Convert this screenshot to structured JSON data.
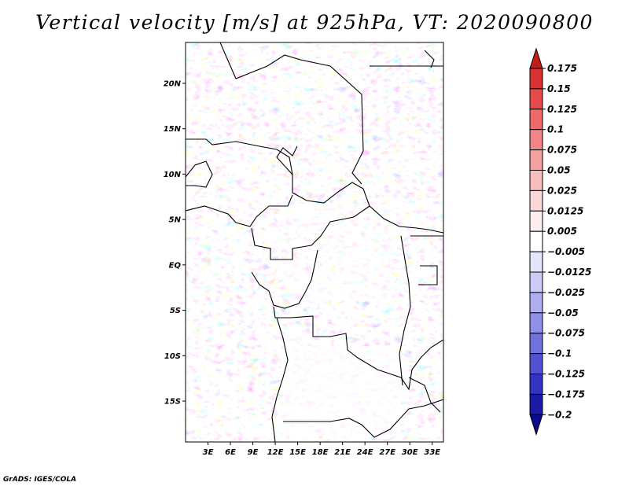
{
  "title": "Vertical velocity [m/s] at 925hPa, VT: 2020090800",
  "footer": "GrADS: IGES/COLA",
  "map": {
    "lon_range": [
      0,
      34.5
    ],
    "lat_range": [
      -19.5,
      24.5
    ],
    "lat_ticks": [
      {
        "value": 20,
        "label": "20N"
      },
      {
        "value": 15,
        "label": "15N"
      },
      {
        "value": 10,
        "label": "10N"
      },
      {
        "value": 5,
        "label": "5N"
      },
      {
        "value": 0,
        "label": "EQ"
      },
      {
        "value": -5,
        "label": "5S"
      },
      {
        "value": -10,
        "label": "10S"
      },
      {
        "value": -15,
        "label": "15S"
      }
    ],
    "lon_ticks": [
      {
        "value": 3,
        "label": "3E"
      },
      {
        "value": 6,
        "label": "6E"
      },
      {
        "value": 9,
        "label": "9E"
      },
      {
        "value": 12,
        "label": "12E"
      },
      {
        "value": 15,
        "label": "15E"
      },
      {
        "value": 18,
        "label": "18E"
      },
      {
        "value": 21,
        "label": "21E"
      },
      {
        "value": 24,
        "label": "24E"
      },
      {
        "value": 27,
        "label": "27E"
      },
      {
        "value": 30,
        "label": "30E"
      },
      {
        "value": 33,
        "label": "33E"
      }
    ]
  },
  "colorbar": {
    "labels": [
      "0.175",
      "0.15",
      "0.125",
      "0.1",
      "0.075",
      "0.05",
      "0.025",
      "0.0125",
      "0.005",
      "−0.005",
      "−0.0125",
      "−0.025",
      "−0.05",
      "−0.075",
      "−0.1",
      "−0.125",
      "−0.175",
      "−0.2"
    ],
    "colors": [
      "#c41a1a",
      "#d83232",
      "#e54b4b",
      "#ee6a6a",
      "#f28585",
      "#f5a1a1",
      "#f8bdbd",
      "#fbd8d8",
      "#fdeeee",
      "#ffffff",
      "#e5e5fb",
      "#cbcbf6",
      "#aeaef0",
      "#9090e8",
      "#7272dd",
      "#5252d2",
      "#3434c4",
      "#1a1aa6",
      "#0a0a8a"
    ]
  }
}
